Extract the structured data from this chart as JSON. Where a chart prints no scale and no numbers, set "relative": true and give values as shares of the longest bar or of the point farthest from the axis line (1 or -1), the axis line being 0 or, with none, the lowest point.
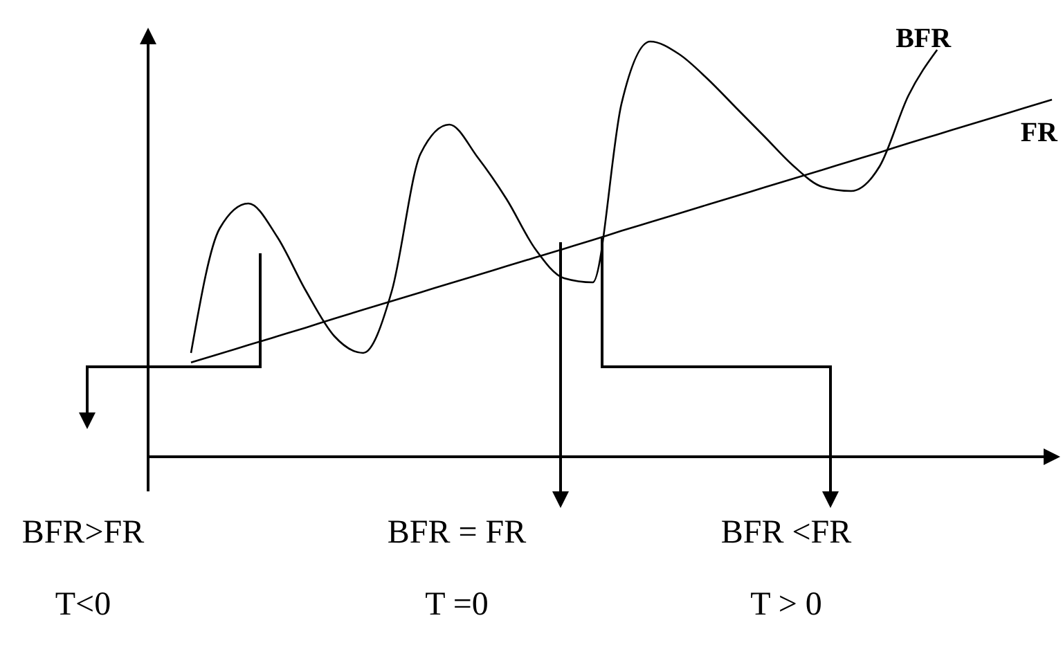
{
  "chart_data": {
    "type": "line",
    "relative": true,
    "categories": [
      null,
      null,
      null,
      null,
      null,
      null,
      null,
      null,
      null,
      null,
      null,
      null,
      null,
      null,
      null,
      null,
      null,
      null,
      null,
      null,
      null,
      null,
      null,
      null,
      null,
      null,
      null,
      null,
      null,
      null,
      null
    ],
    "series": [
      {
        "name": "BFR",
        "color": "#000000",
        "values": [
          0.25,
          0.55,
          0.61,
          0.53,
          0.4,
          0.29,
          0.25,
          0.4,
          0.73,
          0.8,
          0.72,
          0.62,
          0.5,
          0.43,
          0.42,
          0.85,
          1,
          0.97,
          0.91,
          0.84,
          0.77,
          0.7,
          0.65,
          0.64,
          0.7,
          0.87,
          0.98,
          null,
          null,
          null,
          null
        ]
      },
      {
        "name": "FR",
        "color": "#000000",
        "values": [
          0.227,
          0.248,
          0.269,
          0.29,
          0.311,
          0.333,
          0.354,
          0.375,
          0.396,
          0.417,
          0.438,
          0.459,
          0.48,
          0.501,
          0.522,
          0.544,
          0.565,
          0.586,
          0.607,
          0.628,
          0.649,
          0.67,
          0.691,
          0.712,
          0.733,
          0.755,
          0.776,
          0.797,
          0.818,
          0.839,
          0.86
        ]
      }
    ],
    "annotations": [
      "BFR>FR",
      "BFR = FR",
      "BFR <FR",
      "T<0",
      "T =0",
      "T > 0"
    ]
  }
}
